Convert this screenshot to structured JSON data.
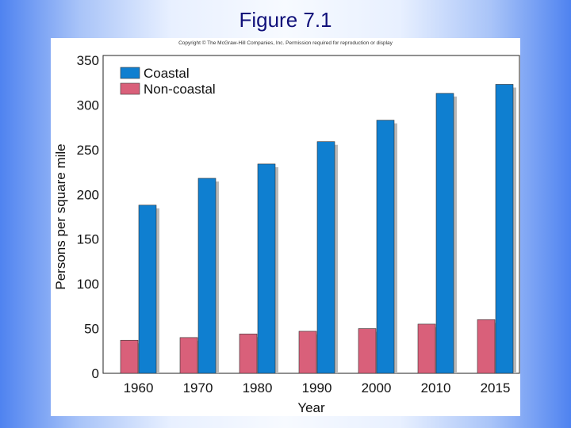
{
  "slide": {
    "title": "Figure 7.1"
  },
  "figure": {
    "copyright": "Copyright © The McGraw-Hill Companies, Inc. Permission required for reproduction or display"
  },
  "chart_data": {
    "type": "bar",
    "title": "",
    "xlabel": "Year",
    "ylabel": "Persons per square mile",
    "categories": [
      "1960",
      "1970",
      "1980",
      "1990",
      "2000",
      "2010",
      "2015"
    ],
    "series": [
      {
        "name": "Non-coastal",
        "color": "#d9607a",
        "values": [
          37,
          40,
          44,
          47,
          50,
          55,
          60
        ]
      },
      {
        "name": "Coastal",
        "color": "#0f7fd0",
        "values": [
          188,
          218,
          234,
          259,
          283,
          313,
          323
        ]
      }
    ],
    "ylim": [
      0,
      350
    ],
    "yticks": [
      0,
      50,
      100,
      150,
      200,
      250,
      300,
      350
    ],
    "legend": "top-left",
    "legend_order": [
      "Coastal",
      "Non-coastal"
    ],
    "grid": false
  }
}
